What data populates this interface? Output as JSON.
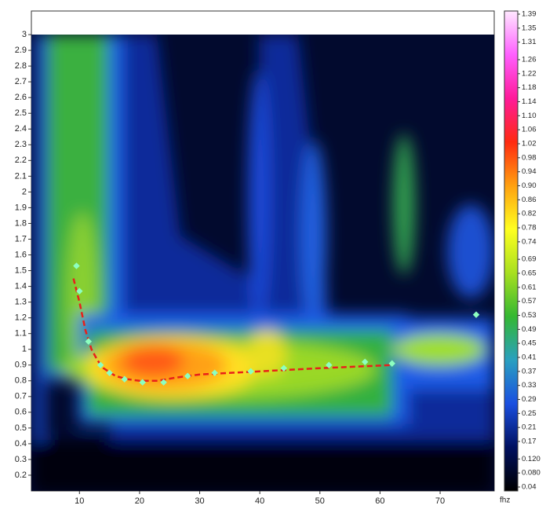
{
  "chart_data": {
    "type": "heatmap",
    "xlabel": "fhz",
    "xlim": [
      2,
      79
    ],
    "ylim": [
      0.1,
      3.15
    ],
    "xticks": [
      10,
      20,
      30,
      40,
      50,
      60,
      70
    ],
    "yticks": [
      0.2,
      0.3,
      0.4,
      0.5,
      0.6,
      0.7,
      0.8,
      0.9,
      1,
      1.1,
      1.2,
      1.3,
      1.4,
      1.5,
      1.6,
      1.7,
      1.8,
      1.9,
      2,
      2.1,
      2.2,
      2.3,
      2.4,
      2.5,
      2.6,
      2.7,
      2.8,
      2.9,
      3
    ],
    "colorbar": {
      "clim": [
        0.04,
        1.39
      ],
      "colors": [
        "#000000",
        "#001060",
        "#1a4fe0",
        "#2aa0c0",
        "#34b832",
        "#a8e020",
        "#ffff20",
        "#ffa010",
        "#ff2a10",
        "#ff1a9a",
        "#ff60ff",
        "#ffe8ff"
      ],
      "ticks": [
        1.39,
        1.35,
        1.31,
        1.26,
        1.22,
        1.18,
        1.14,
        {
          "value": 1.1,
          "label": "1.10"
        },
        1.06,
        1.02,
        0.98,
        0.94,
        {
          "value": 0.9,
          "label": "0.90"
        },
        0.86,
        0.82,
        0.78,
        0.74,
        0.69,
        0.65,
        0.61,
        0.57,
        0.53,
        0.49,
        0.45,
        0.41,
        0.37,
        0.33,
        0.29,
        0.25,
        0.21,
        0.17,
        {
          "value": 0.12,
          "label": "0.120"
        },
        {
          "value": 0.08,
          "label": "0.080"
        },
        0.04
      ]
    },
    "fit": {
      "color": "#e8201a",
      "x": [
        9,
        10,
        11,
        12,
        13,
        14,
        16,
        18,
        20,
        23,
        26,
        30,
        40,
        50,
        62
      ],
      "y": [
        1.45,
        1.3,
        1.12,
        1.0,
        0.93,
        0.88,
        0.83,
        0.81,
        0.8,
        0.8,
        0.82,
        0.84,
        0.86,
        0.88,
        0.9
      ]
    },
    "picks": {
      "color": "#8dffc0",
      "x": [
        9.5,
        10,
        11.5,
        13.5,
        15,
        17.5,
        20.5,
        24,
        28,
        32.5,
        38.5,
        44,
        51.5,
        57.5,
        62,
        76
      ],
      "y": [
        1.53,
        1.37,
        1.05,
        0.9,
        0.85,
        0.81,
        0.79,
        0.79,
        0.83,
        0.85,
        0.86,
        0.88,
        0.9,
        0.92,
        0.91,
        1.22
      ]
    }
  }
}
